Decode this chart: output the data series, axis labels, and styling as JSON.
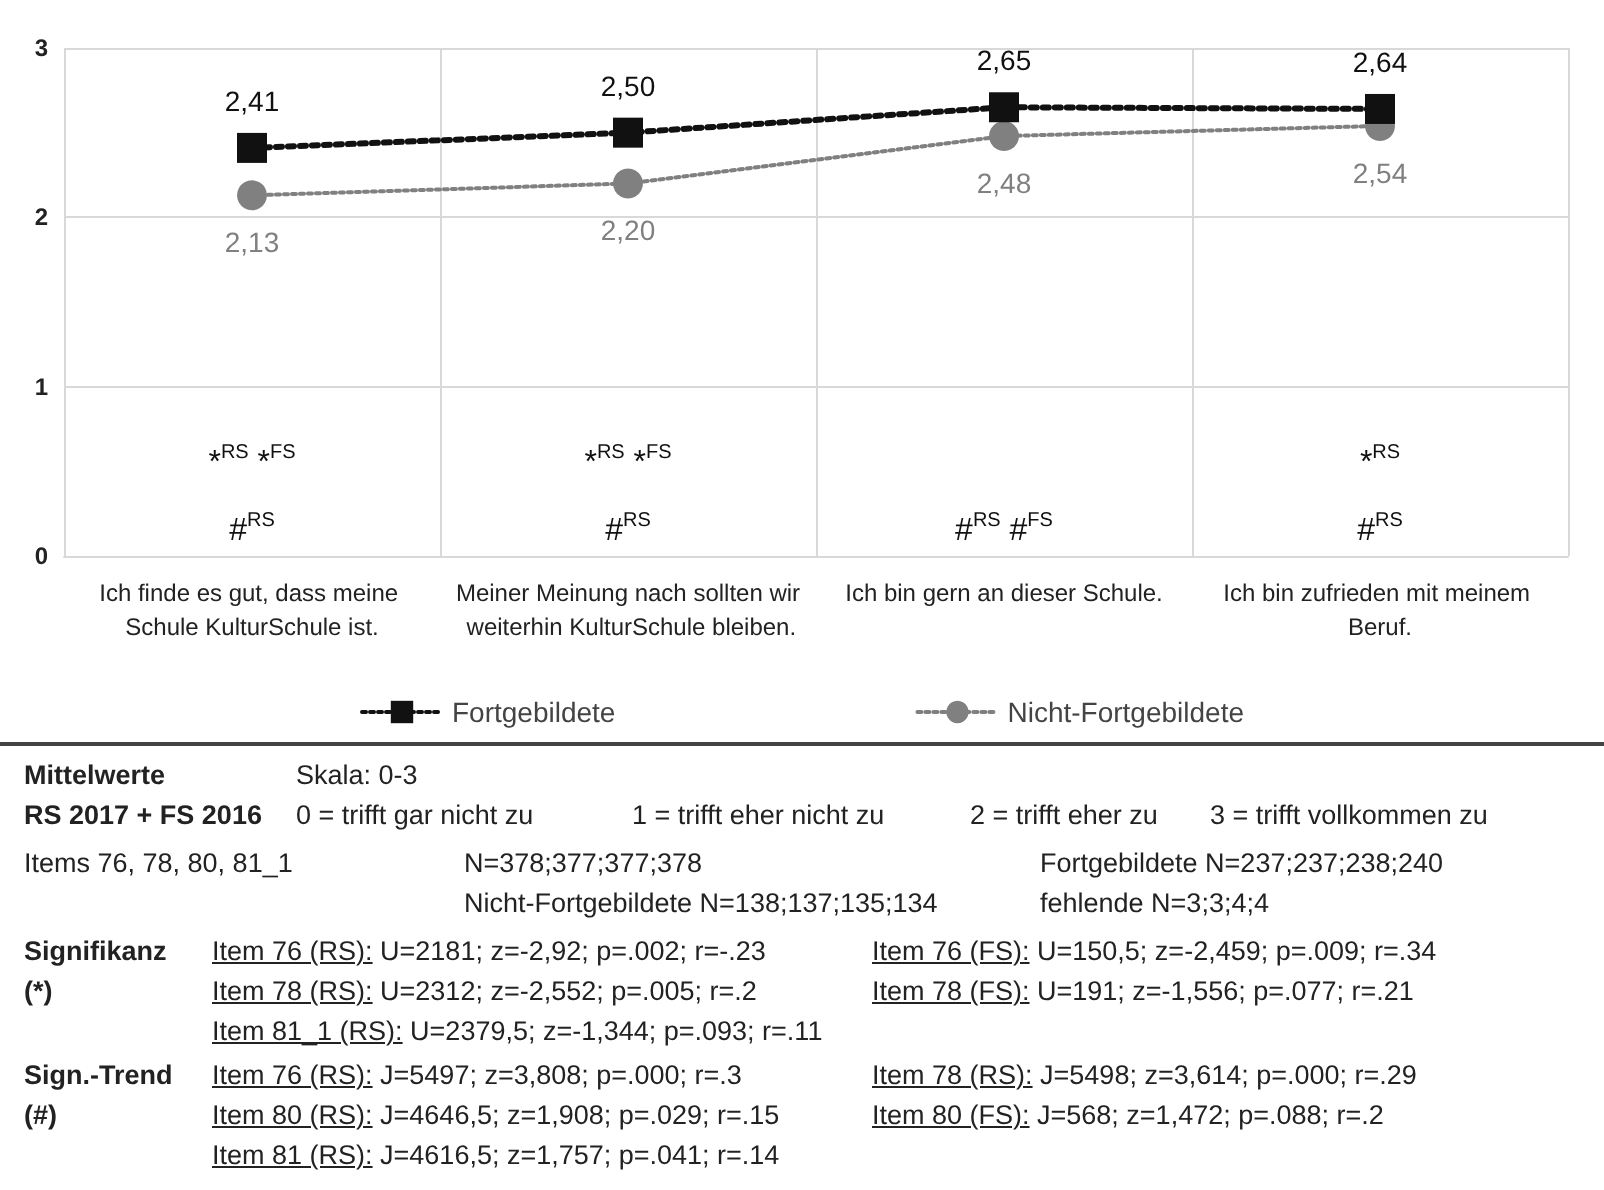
{
  "chart_data": {
    "type": "line",
    "categories": [
      "Ich finde es gut, dass meine Schule KulturSchule ist.",
      "Meiner Meinung nach sollten wir weiterhin KulturSchule bleiben.",
      "Ich bin gern an dieser Schule.",
      "Ich bin zufrieden mit meinem Beruf."
    ],
    "series": [
      {
        "name": "Fortgebildete",
        "color": "#111111",
        "marker": "square",
        "values": [
          2.41,
          2.5,
          2.65,
          2.64
        ],
        "value_labels": [
          "2,41",
          "2,50",
          "2,65",
          "2,64"
        ]
      },
      {
        "name": "Nicht-Fortgebildete",
        "color": "#808080",
        "marker": "circle",
        "values": [
          2.13,
          2.2,
          2.48,
          2.54
        ],
        "value_labels": [
          "2,13",
          "2,20",
          "2,48",
          "2,54"
        ]
      }
    ],
    "ylim": [
      0,
      3
    ],
    "yticks": [
      0,
      1,
      2,
      3
    ],
    "grid": true,
    "legend": "bottom",
    "line_style": "dotted",
    "annotations": [
      "*$^{RS}$ *$^{FS}$",
      "#$^{RS}$",
      "*$^{RS}$ *$^{FS}$",
      "#$^{RS}$",
      "#$^{RS}$ #$^{FS}$",
      "*$^{RS}$",
      "#$^{RS}$",
      "Mittelwerte",
      "Skala: 0-3",
      "RS 2017 + FS 2016",
      "0 = trifft gar nicht zu",
      "1 = trifft eher nicht zu",
      "2 = trifft eher zu",
      "3 = trifft vollkommen zu",
      "Items 76, 78, 80, 81_1",
      "N=378;377;377;378",
      "Nicht-Fortgebildete N=138;137;135;134",
      "Fortgebildete N=237;237;238;240",
      "fehlende N=3;3;4;4",
      "Signifikanz",
      "(*)",
      "Item 76 (RS): U=2181; z=-2,92; p=.002; r=-.23",
      "Item 78 (RS): U=2312; z=-2,552; p=.005; r=.2",
      "Item 81_1 (RS): U=2379,5; z=-1,344; p=.093; r=.11",
      "Item 76 (FS): U=150,5; z=-2,459; p=.009; r=.34",
      "Item 78 (FS): U=191; z=-1,556; p=.077; r=.21",
      "Sign.-Trend",
      "(#)",
      "Item 76 (RS): J=5497; z=3,808; p=.000; r=.3",
      "Item 80 (RS): J=4646,5; z=1,908; p=.029; r=.15",
      "Item 81 (RS): J=4616,5; z=1,757; p=.041; r=.14",
      "Item 78 (RS): J=5498; z=3,614; p=.000; r=.29",
      "Item 80 (FS): J=568; z=1,472; p=.088; r=.2"
    ]
  }
}
